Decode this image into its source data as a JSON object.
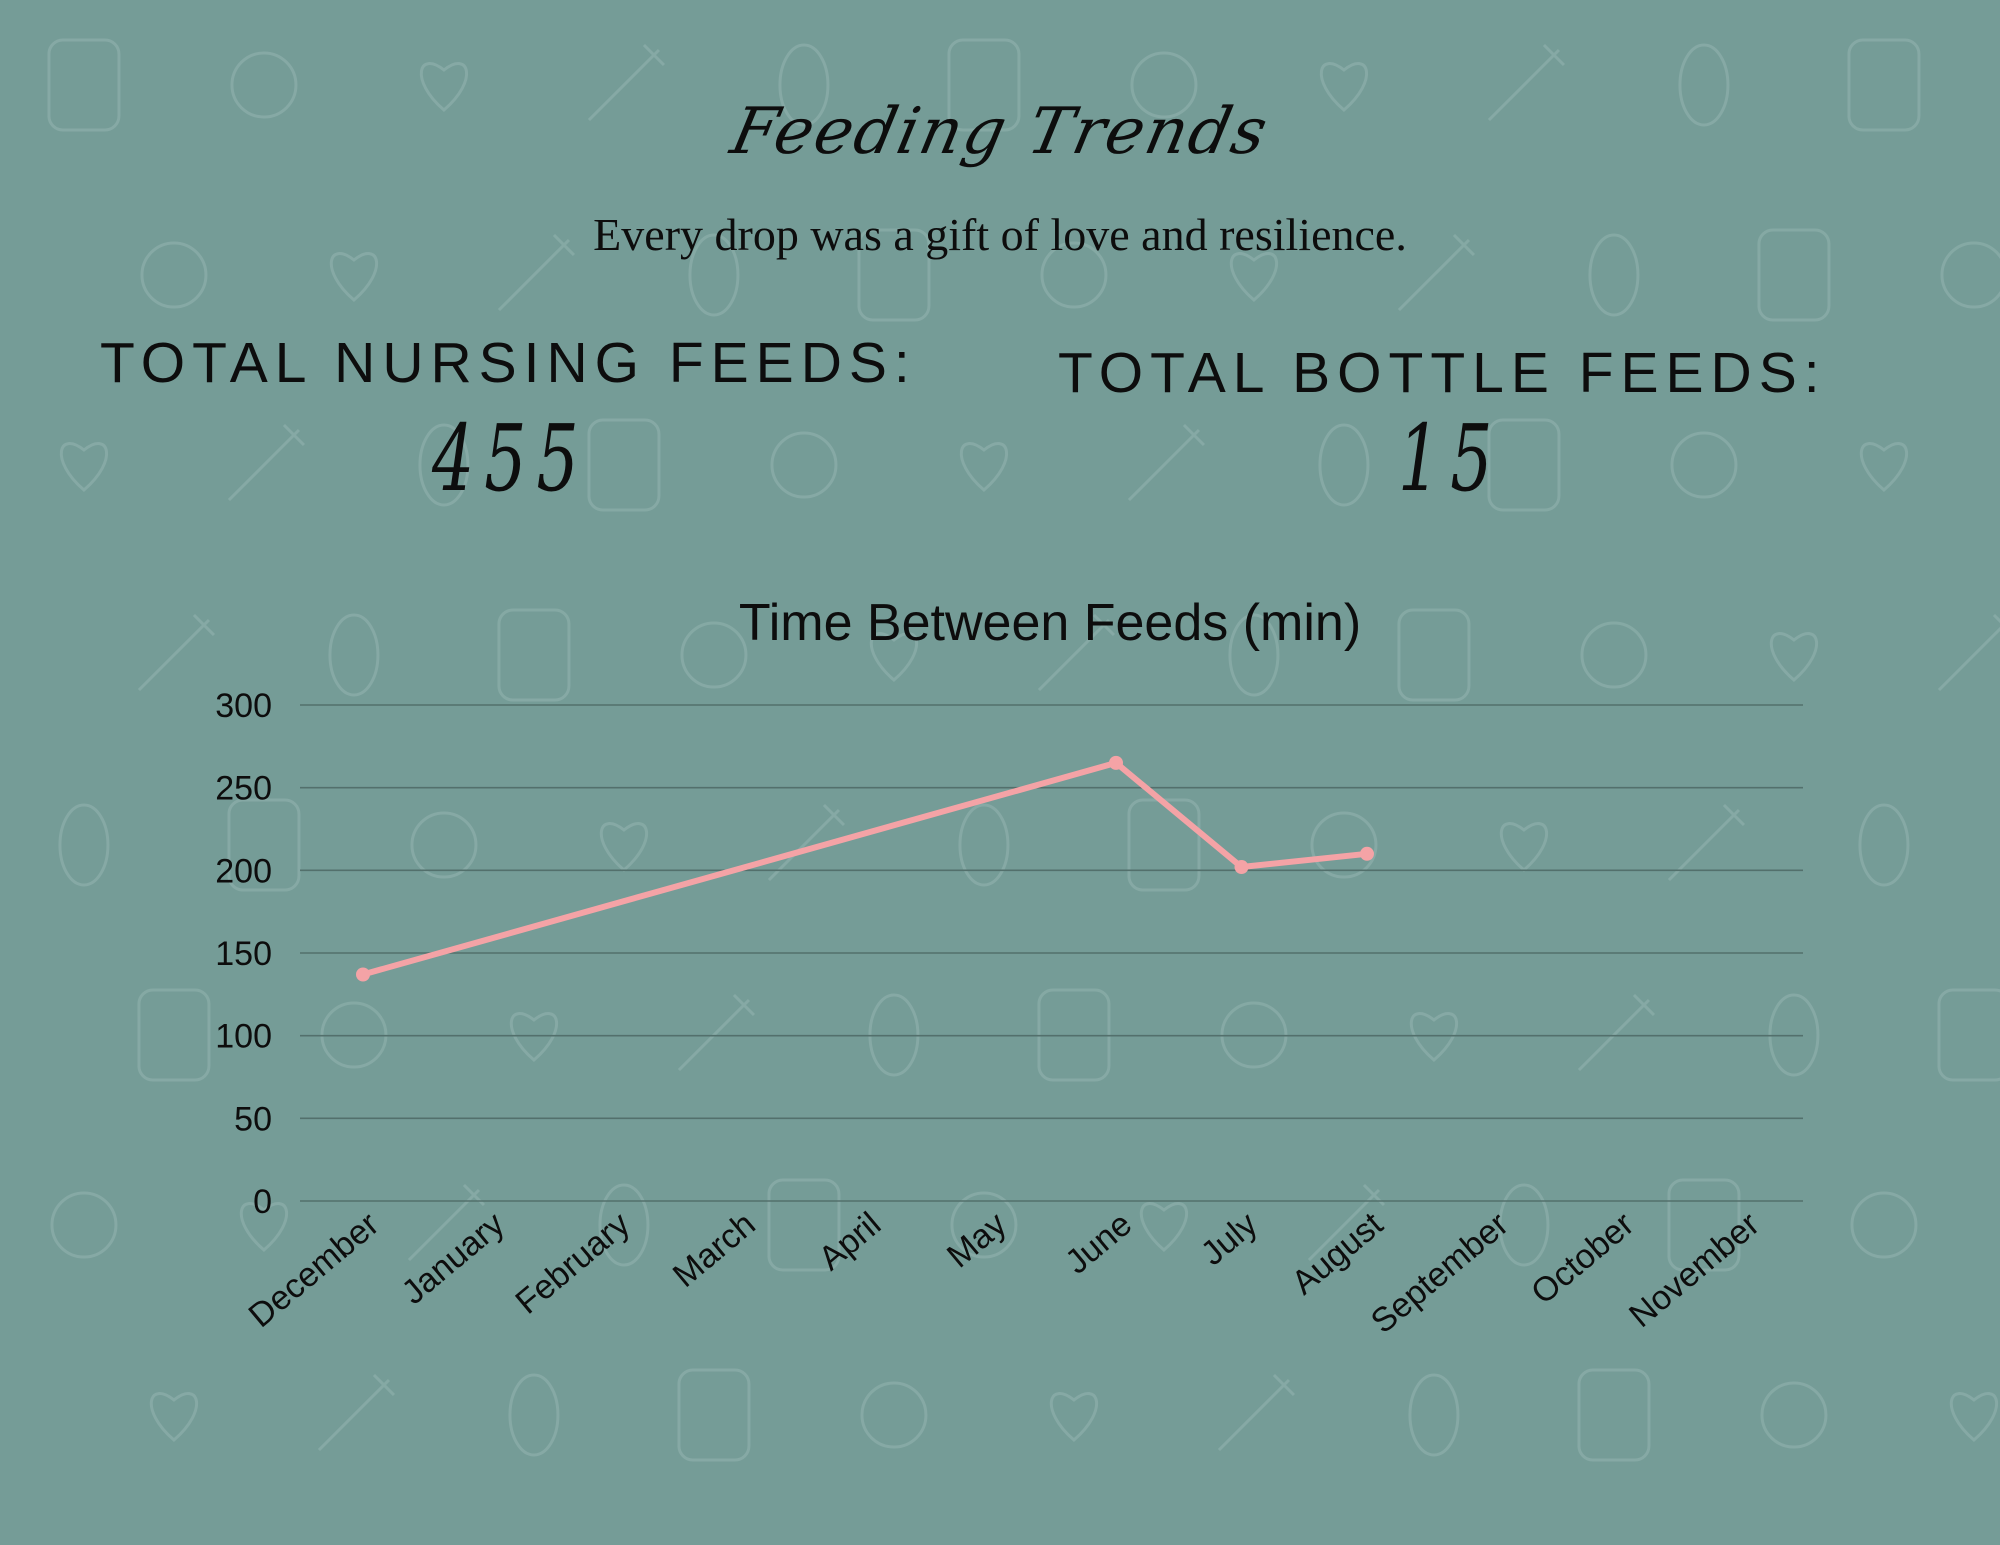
{
  "header": {
    "title": "Feeding Trends",
    "subtitle": "Every drop was a gift of love and resilience."
  },
  "stats": {
    "nursing_label": "TOTAL NURSING FEEDS:",
    "nursing_value": "455",
    "bottle_label": "TOTAL BOTTLE FEEDS:",
    "bottle_value": "15"
  },
  "colors": {
    "background": "#759c97",
    "line": "#f4a3a6",
    "grid": "#53706c",
    "text": "#0d0d0d"
  },
  "chart_data": {
    "type": "line",
    "title": "Time Between Feeds (min)",
    "categories": [
      "December",
      "January",
      "February",
      "March",
      "April",
      "May",
      "June",
      "July",
      "August",
      "September",
      "October",
      "November"
    ],
    "series": [
      {
        "values": [
          137,
          null,
          null,
          null,
          null,
          null,
          265,
          202,
          210,
          null,
          null,
          null
        ]
      }
    ],
    "ylim": [
      0,
      300
    ],
    "yticks": [
      0,
      50,
      100,
      150,
      200,
      250,
      300
    ],
    "grid": true,
    "legend": "none"
  }
}
